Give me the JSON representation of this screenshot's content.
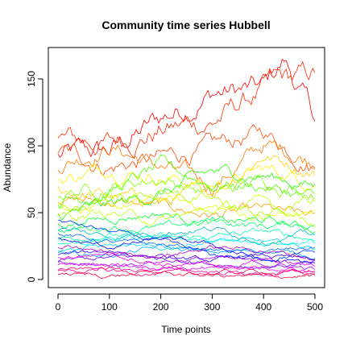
{
  "chart_data": {
    "type": "line",
    "title": "Community time series Hubbell",
    "xlabel": "Time points",
    "ylabel": "Abundance",
    "xlim": [
      0,
      500
    ],
    "ylim": [
      0,
      170
    ],
    "xticks": [
      0,
      100,
      200,
      300,
      400,
      500
    ],
    "yticks": [
      0,
      50,
      100,
      150
    ],
    "grid": false,
    "legend": "none",
    "series": [
      {
        "color": "#FF0000",
        "keypoints": [
          [
            0,
            92
          ],
          [
            100,
            95
          ],
          [
            200,
            120
          ],
          [
            300,
            140
          ],
          [
            400,
            142
          ],
          [
            440,
            163
          ],
          [
            500,
            120
          ]
        ]
      },
      {
        "color": "#FF2A00",
        "keypoints": [
          [
            0,
            104
          ],
          [
            100,
            102
          ],
          [
            200,
            112
          ],
          [
            300,
            118
          ],
          [
            420,
            146
          ],
          [
            500,
            152
          ]
        ]
      },
      {
        "color": "#FF4A00",
        "keypoints": [
          [
            0,
            96
          ],
          [
            100,
            85
          ],
          [
            200,
            90
          ],
          [
            300,
            98
          ],
          [
            400,
            110
          ],
          [
            500,
            86
          ]
        ]
      },
      {
        "color": "#FF7A00",
        "keypoints": [
          [
            0,
            86
          ],
          [
            100,
            100
          ],
          [
            200,
            84
          ],
          [
            300,
            70
          ],
          [
            400,
            100
          ],
          [
            500,
            90
          ]
        ]
      },
      {
        "color": "#FF9A00",
        "keypoints": [
          [
            0,
            60
          ],
          [
            100,
            58
          ],
          [
            200,
            55
          ],
          [
            300,
            48
          ],
          [
            400,
            52
          ],
          [
            500,
            46
          ]
        ]
      },
      {
        "color": "#FFD000",
        "keypoints": [
          [
            0,
            68
          ],
          [
            100,
            62
          ],
          [
            200,
            58
          ],
          [
            300,
            66
          ],
          [
            400,
            94
          ],
          [
            500,
            80
          ]
        ]
      },
      {
        "color": "#FFF200",
        "keypoints": [
          [
            0,
            74
          ],
          [
            100,
            84
          ],
          [
            200,
            78
          ],
          [
            300,
            70
          ],
          [
            400,
            82
          ],
          [
            500,
            74
          ]
        ]
      },
      {
        "color": "#E5FF00",
        "keypoints": [
          [
            0,
            56
          ],
          [
            100,
            52
          ],
          [
            200,
            60
          ],
          [
            300,
            54
          ],
          [
            400,
            46
          ],
          [
            500,
            50
          ]
        ]
      },
      {
        "color": "#B0FF00",
        "keypoints": [
          [
            0,
            52
          ],
          [
            100,
            60
          ],
          [
            200,
            68
          ],
          [
            300,
            58
          ],
          [
            400,
            48
          ],
          [
            500,
            58
          ]
        ]
      },
      {
        "color": "#80FF00",
        "keypoints": [
          [
            0,
            64
          ],
          [
            100,
            70
          ],
          [
            200,
            76
          ],
          [
            300,
            64
          ],
          [
            400,
            74
          ],
          [
            500,
            66
          ]
        ]
      },
      {
        "color": "#50FF00",
        "keypoints": [
          [
            0,
            58
          ],
          [
            100,
            66
          ],
          [
            200,
            84
          ],
          [
            300,
            72
          ],
          [
            400,
            70
          ],
          [
            500,
            60
          ]
        ]
      },
      {
        "color": "#20FF00",
        "keypoints": [
          [
            0,
            48
          ],
          [
            100,
            55
          ],
          [
            200,
            64
          ],
          [
            300,
            80
          ],
          [
            400,
            78
          ],
          [
            500,
            70
          ]
        ]
      },
      {
        "color": "#00FF30",
        "keypoints": [
          [
            0,
            42
          ],
          [
            100,
            46
          ],
          [
            200,
            50
          ],
          [
            300,
            42
          ],
          [
            400,
            44
          ],
          [
            500,
            38
          ]
        ]
      },
      {
        "color": "#00FF70",
        "keypoints": [
          [
            0,
            36
          ],
          [
            100,
            40
          ],
          [
            200,
            38
          ],
          [
            300,
            44
          ],
          [
            400,
            40
          ],
          [
            500,
            42
          ]
        ]
      },
      {
        "color": "#00FFA8",
        "keypoints": [
          [
            0,
            30
          ],
          [
            100,
            34
          ],
          [
            200,
            30
          ],
          [
            300,
            32
          ],
          [
            400,
            36
          ],
          [
            500,
            30
          ]
        ]
      },
      {
        "color": "#00FFE0",
        "keypoints": [
          [
            0,
            26
          ],
          [
            100,
            30
          ],
          [
            200,
            34
          ],
          [
            300,
            28
          ],
          [
            400,
            26
          ],
          [
            500,
            32
          ]
        ]
      },
      {
        "color": "#00E0FF",
        "keypoints": [
          [
            0,
            22
          ],
          [
            100,
            26
          ],
          [
            200,
            22
          ],
          [
            300,
            30
          ],
          [
            400,
            28
          ],
          [
            500,
            24
          ]
        ]
      },
      {
        "color": "#00A8FF",
        "keypoints": [
          [
            0,
            20
          ],
          [
            100,
            18
          ],
          [
            200,
            24
          ],
          [
            300,
            20
          ],
          [
            400,
            22
          ],
          [
            500,
            18
          ]
        ]
      },
      {
        "color": "#0070FF",
        "keypoints": [
          [
            0,
            34
          ],
          [
            100,
            28
          ],
          [
            200,
            26
          ],
          [
            300,
            22
          ],
          [
            400,
            20
          ],
          [
            500,
            24
          ]
        ]
      },
      {
        "color": "#0038FF",
        "keypoints": [
          [
            0,
            44
          ],
          [
            100,
            36
          ],
          [
            200,
            28
          ],
          [
            300,
            18
          ],
          [
            400,
            16
          ],
          [
            500,
            20
          ]
        ]
      },
      {
        "color": "#0000FF",
        "keypoints": [
          [
            0,
            30
          ],
          [
            100,
            24
          ],
          [
            200,
            30
          ],
          [
            300,
            26
          ],
          [
            400,
            14
          ],
          [
            500,
            12
          ]
        ]
      },
      {
        "color": "#3800FF",
        "keypoints": [
          [
            0,
            18
          ],
          [
            100,
            22
          ],
          [
            200,
            16
          ],
          [
            300,
            14
          ],
          [
            400,
            18
          ],
          [
            500,
            14
          ]
        ]
      },
      {
        "color": "#7000FF",
        "keypoints": [
          [
            0,
            14
          ],
          [
            100,
            16
          ],
          [
            200,
            18
          ],
          [
            300,
            12
          ],
          [
            400,
            10
          ],
          [
            500,
            12
          ]
        ]
      },
      {
        "color": "#A800FF",
        "keypoints": [
          [
            0,
            12
          ],
          [
            100,
            10
          ],
          [
            200,
            14
          ],
          [
            300,
            16
          ],
          [
            400,
            12
          ],
          [
            500,
            8
          ]
        ]
      },
      {
        "color": "#E000FF",
        "keypoints": [
          [
            0,
            10
          ],
          [
            100,
            12
          ],
          [
            200,
            10
          ],
          [
            300,
            8
          ],
          [
            400,
            14
          ],
          [
            500,
            10
          ]
        ]
      },
      {
        "color": "#FF00E0",
        "keypoints": [
          [
            0,
            16
          ],
          [
            100,
            20
          ],
          [
            200,
            12
          ],
          [
            300,
            10
          ],
          [
            400,
            8
          ],
          [
            500,
            6
          ]
        ]
      },
      {
        "color": "#FF00A8",
        "keypoints": [
          [
            0,
            8
          ],
          [
            100,
            6
          ],
          [
            200,
            8
          ],
          [
            300,
            6
          ],
          [
            400,
            4
          ],
          [
            500,
            6
          ]
        ]
      },
      {
        "color": "#FF0070",
        "keypoints": [
          [
            0,
            6
          ],
          [
            100,
            8
          ],
          [
            200,
            4
          ],
          [
            300,
            5
          ],
          [
            400,
            6
          ],
          [
            500,
            4
          ]
        ]
      },
      {
        "color": "#FF0038",
        "keypoints": [
          [
            0,
            4
          ],
          [
            100,
            3
          ],
          [
            200,
            5
          ],
          [
            300,
            3
          ],
          [
            400,
            2
          ],
          [
            500,
            3
          ]
        ]
      },
      {
        "color": "#C000C0",
        "keypoints": [
          [
            0,
            24
          ],
          [
            100,
            20
          ],
          [
            200,
            18
          ],
          [
            300,
            24
          ],
          [
            400,
            22
          ],
          [
            500,
            16
          ]
        ]
      },
      {
        "color": "#00C0C0",
        "keypoints": [
          [
            0,
            38
          ],
          [
            100,
            32
          ],
          [
            200,
            36
          ],
          [
            300,
            38
          ],
          [
            400,
            30
          ],
          [
            500,
            34
          ]
        ]
      },
      {
        "color": "#C0FF00",
        "keypoints": [
          [
            0,
            46
          ],
          [
            100,
            50
          ],
          [
            200,
            44
          ],
          [
            300,
            52
          ],
          [
            400,
            58
          ],
          [
            500,
            44
          ]
        ]
      }
    ]
  }
}
